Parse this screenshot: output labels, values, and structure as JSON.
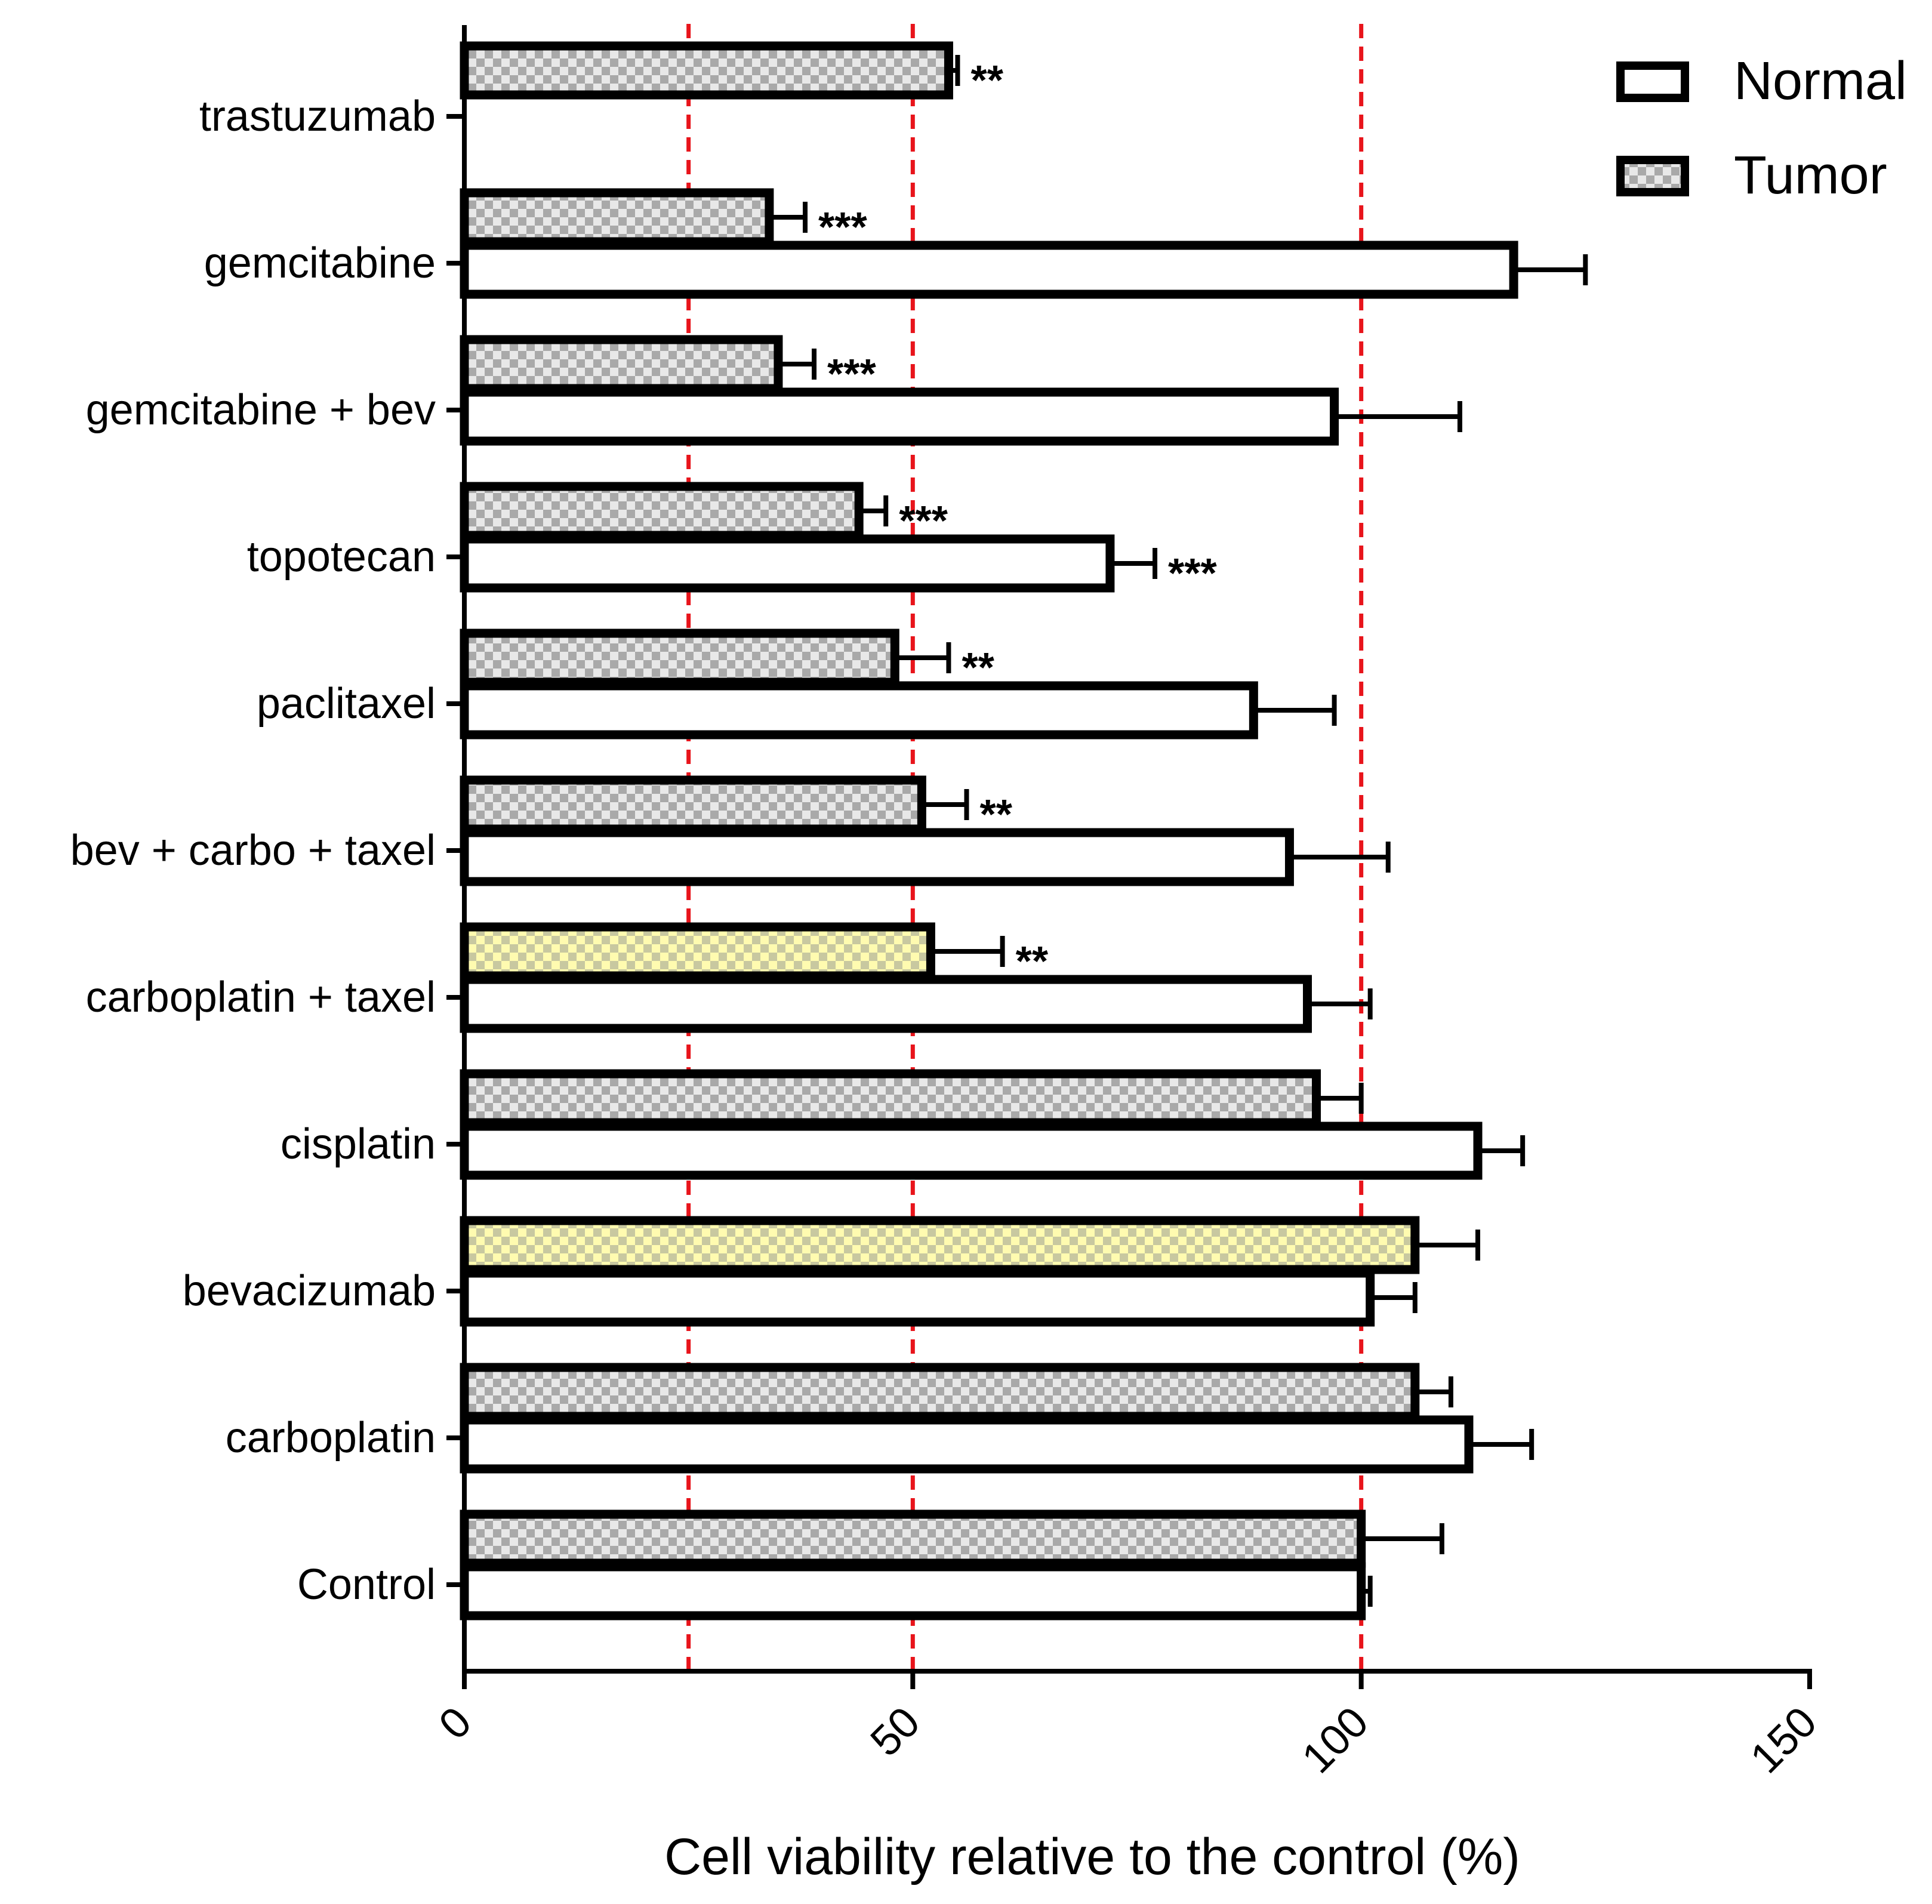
{
  "chart_data": {
    "type": "bar",
    "orientation": "horizontal",
    "xlabel": "Cell viability relative to the control (%)",
    "xlim": [
      0,
      150
    ],
    "xticks": [
      "0",
      "50",
      "100",
      "150"
    ],
    "reference_lines": [
      25,
      50,
      100
    ],
    "reference_line_color": "#e8141b",
    "legend": {
      "position": "top-right",
      "entries": [
        "Normal",
        "Tumor"
      ]
    },
    "categories": [
      "trastuzumab",
      "gemcitabine",
      "gemcitabine + bev",
      "topotecan",
      "paclitaxel",
      "bev + carbo + taxel",
      "carboplatin + taxel",
      "cisplatin",
      "bevacizumab",
      "carboplatin",
      "Control"
    ],
    "series": [
      {
        "name": "Tumor",
        "pattern": "checkered-gray",
        "values": [
          54,
          34,
          35,
          44,
          48,
          51,
          52,
          95,
          106,
          106,
          100
        ],
        "errors": [
          1,
          4,
          4,
          3,
          6,
          5,
          8,
          5,
          7,
          4,
          9
        ],
        "highlight_color": "#fffaa0",
        "highlighted": [
          "carboplatin + taxel",
          "bevacizumab"
        ],
        "significance": [
          "**",
          "***",
          "***",
          "***",
          "**",
          "**",
          "**",
          "",
          "",
          "",
          ""
        ]
      },
      {
        "name": "Normal",
        "pattern": "white",
        "values": [
          null,
          117,
          97,
          72,
          88,
          92,
          94,
          113,
          101,
          112,
          100
        ],
        "errors": [
          null,
          8,
          14,
          5,
          9,
          11,
          7,
          5,
          5,
          7,
          1
        ],
        "significance": [
          "",
          "",
          "",
          "***",
          "",
          "",
          "",
          "",
          "",
          "",
          ""
        ]
      }
    ]
  }
}
